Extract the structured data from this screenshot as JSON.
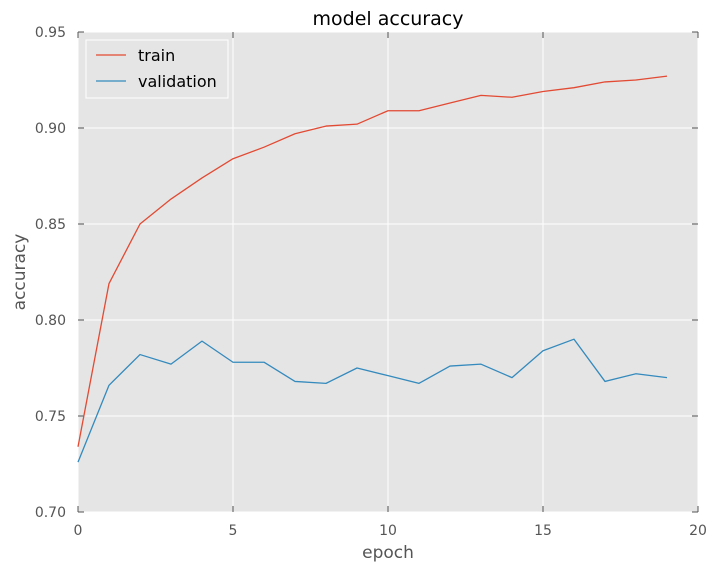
{
  "chart_data": {
    "type": "line",
    "title": "model accuracy",
    "xlabel": "epoch",
    "ylabel": "accuracy",
    "xlim": [
      0,
      20
    ],
    "ylim": [
      0.7,
      0.95
    ],
    "xticks": [
      0,
      5,
      10,
      15,
      20
    ],
    "xtick_labels": [
      "0",
      "5",
      "10",
      "15",
      "20"
    ],
    "yticks": [
      0.7,
      0.75,
      0.8,
      0.85,
      0.9,
      0.95
    ],
    "ytick_labels": [
      "0.70",
      "0.75",
      "0.80",
      "0.85",
      "0.90",
      "0.95"
    ],
    "grid": true,
    "legend_position": "top-left",
    "x": [
      0,
      1,
      2,
      3,
      4,
      5,
      6,
      7,
      8,
      9,
      10,
      11,
      12,
      13,
      14,
      15,
      16,
      17,
      18,
      19
    ],
    "series": [
      {
        "name": "train",
        "color": "#e24a33",
        "values": [
          0.734,
          0.819,
          0.85,
          0.863,
          0.874,
          0.884,
          0.89,
          0.897,
          0.901,
          0.902,
          0.909,
          0.909,
          0.913,
          0.917,
          0.916,
          0.919,
          0.921,
          0.924,
          0.925,
          0.927
        ]
      },
      {
        "name": "validation",
        "color": "#348abd",
        "values": [
          0.726,
          0.766,
          0.782,
          0.777,
          0.789,
          0.778,
          0.778,
          0.768,
          0.767,
          0.775,
          0.771,
          0.767,
          0.776,
          0.777,
          0.77,
          0.784,
          0.79,
          0.768,
          0.772,
          0.77
        ]
      }
    ],
    "style": {
      "background": "#e5e5e5",
      "grid_color": "#ffffff",
      "tick_color": "#555555"
    }
  }
}
